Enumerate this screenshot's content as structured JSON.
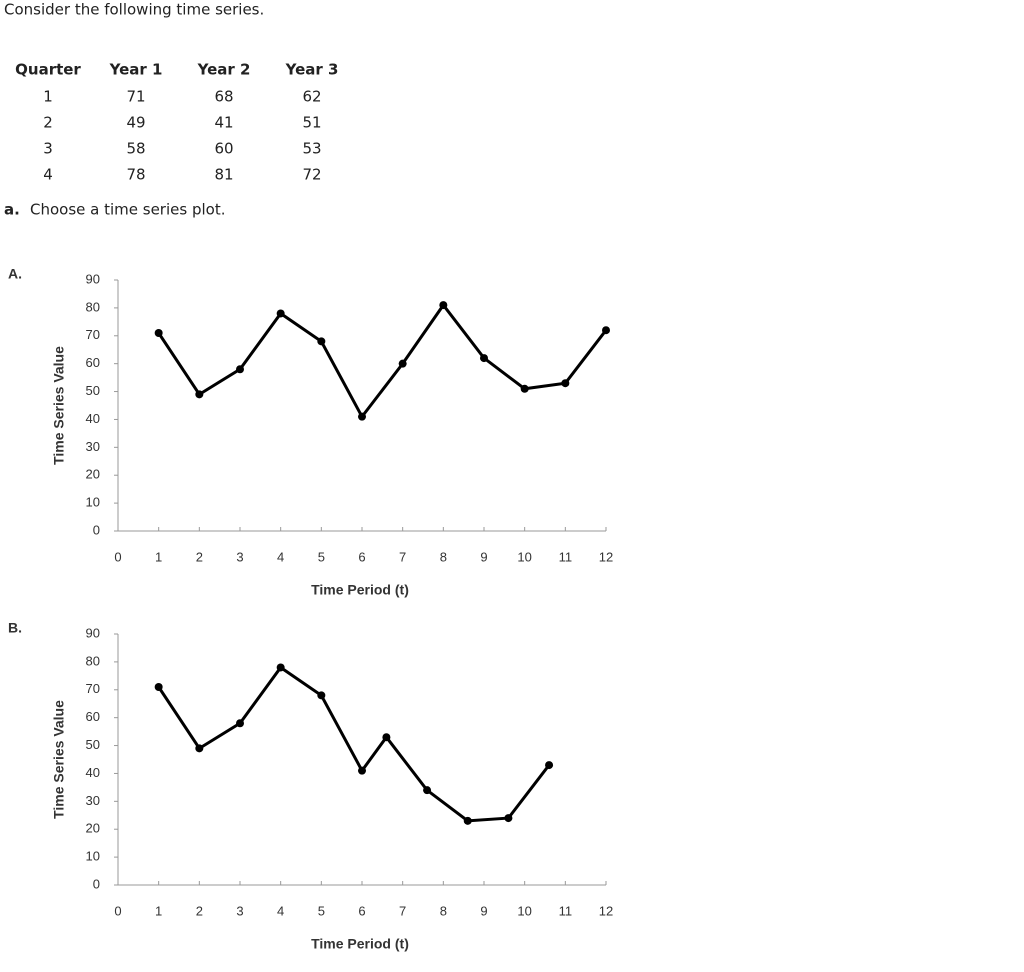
{
  "intro": "Consider the following time series.",
  "table": {
    "header": [
      "Quarter",
      "Year 1",
      "Year 2",
      "Year 3"
    ],
    "rows": [
      [
        "1",
        "71",
        "68",
        "62"
      ],
      [
        "2",
        "49",
        "41",
        "51"
      ],
      [
        "3",
        "58",
        "60",
        "53"
      ],
      [
        "4",
        "78",
        "81",
        "72"
      ]
    ]
  },
  "question": {
    "label": "a.",
    "text": "Choose a time series plot."
  },
  "options": [
    "A.",
    "B."
  ],
  "chart_data": [
    {
      "type": "line",
      "x_label": "Time Period (t)",
      "y_label": "Time Series Value",
      "x": [
        1,
        2,
        3,
        4,
        5,
        6,
        7,
        8,
        9,
        10,
        11,
        12
      ],
      "values": [
        71,
        49,
        58,
        78,
        68,
        41,
        60,
        81,
        62,
        51,
        53,
        72
      ],
      "color": "#000000",
      "xlim": [
        0,
        12
      ],
      "xticks": [
        0,
        1,
        2,
        3,
        4,
        5,
        6,
        7,
        8,
        9,
        10,
        11,
        12
      ],
      "ylim": [
        0,
        90
      ],
      "yticks": [
        0,
        10,
        20,
        30,
        40,
        50,
        60,
        70,
        80,
        90
      ],
      "grid": false
    },
    {
      "type": "line",
      "x_label": "Time Period (t)",
      "y_label": "Time Series Value",
      "x": [
        1,
        2,
        3,
        4,
        5,
        6,
        6.6,
        7.6,
        8.6,
        9.6,
        10.6
      ],
      "values": [
        71,
        49,
        58,
        78,
        68,
        41,
        53,
        34,
        23,
        24,
        43
      ],
      "color": "#000000",
      "xlim": [
        0,
        12
      ],
      "xticks": [
        0,
        1,
        2,
        3,
        4,
        5,
        6,
        7,
        8,
        9,
        10,
        11,
        12
      ],
      "ylim": [
        0,
        90
      ],
      "yticks": [
        0,
        10,
        20,
        30,
        40,
        50,
        60,
        70,
        80,
        90
      ],
      "grid": false
    }
  ]
}
